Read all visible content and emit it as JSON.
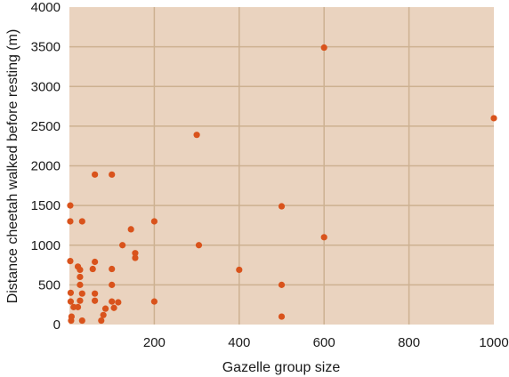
{
  "chart_data": {
    "type": "scatter",
    "title": "",
    "xlabel": "Gazelle group size",
    "ylabel": "Distance cheetah walked before resting (m)",
    "xlim": [
      0,
      1000
    ],
    "ylim": [
      0,
      4000
    ],
    "xticks": [
      200,
      400,
      600,
      800,
      1000
    ],
    "yticks": [
      0,
      500,
      1000,
      1500,
      2000,
      2500,
      3000,
      3500,
      4000
    ],
    "grid": true,
    "legend": "none",
    "colors": {
      "plot_background": "#ead3bf",
      "gridline": "#cdb191",
      "point": "#d9531c"
    },
    "series": [
      {
        "points": [
          [
            2,
            1500
          ],
          [
            2,
            1300
          ],
          [
            2,
            800
          ],
          [
            3,
            400
          ],
          [
            3,
            290
          ],
          [
            5,
            100
          ],
          [
            4,
            50
          ],
          [
            10,
            220
          ],
          [
            20,
            730
          ],
          [
            25,
            690
          ],
          [
            30,
            1300
          ],
          [
            25,
            600
          ],
          [
            25,
            500
          ],
          [
            30,
            390
          ],
          [
            25,
            300
          ],
          [
            20,
            220
          ],
          [
            30,
            50
          ],
          [
            55,
            700
          ],
          [
            60,
            790
          ],
          [
            60,
            390
          ],
          [
            60,
            1890
          ],
          [
            60,
            300
          ],
          [
            75,
            50
          ],
          [
            80,
            120
          ],
          [
            85,
            200
          ],
          [
            100,
            1890
          ],
          [
            100,
            700
          ],
          [
            100,
            500
          ],
          [
            100,
            290
          ],
          [
            105,
            210
          ],
          [
            115,
            280
          ],
          [
            125,
            1000
          ],
          [
            145,
            1200
          ],
          [
            155,
            900
          ],
          [
            155,
            840
          ],
          [
            200,
            1300
          ],
          [
            200,
            290
          ],
          [
            300,
            2390
          ],
          [
            305,
            1000
          ],
          [
            400,
            690
          ],
          [
            500,
            1490
          ],
          [
            500,
            500
          ],
          [
            500,
            100
          ],
          [
            600,
            3490
          ],
          [
            600,
            1100
          ],
          [
            1000,
            2600
          ]
        ]
      }
    ]
  }
}
